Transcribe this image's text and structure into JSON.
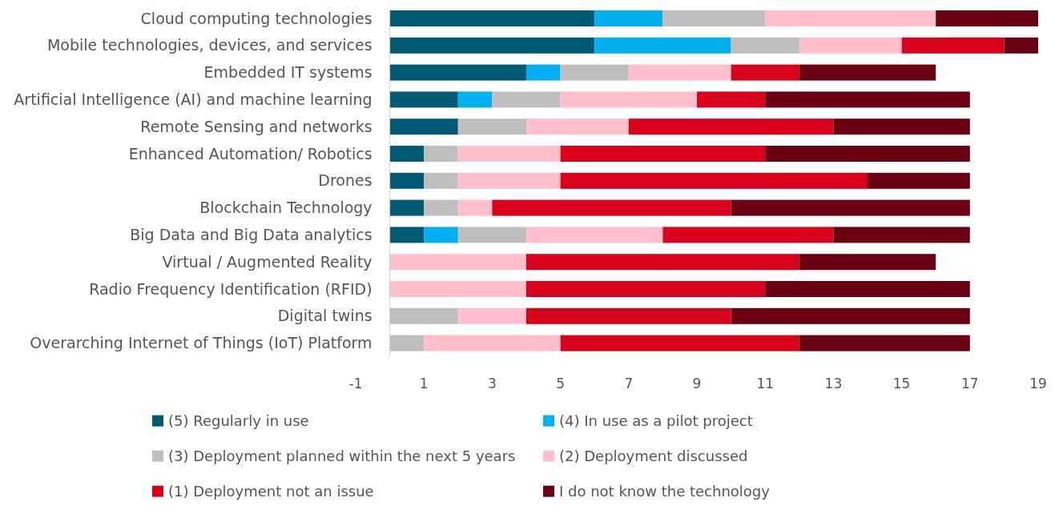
{
  "chart_data": {
    "type": "bar",
    "orientation": "horizontal",
    "stacked": true,
    "categories": [
      "Cloud computing technologies",
      "Mobile technologies, devices, and services",
      "Embedded IT systems",
      "Artificial Intelligence (AI) and machine learning",
      "Remote Sensing and networks",
      "Enhanced Automation/ Robotics",
      "Drones",
      "Blockchain Technology",
      "Big Data and Big Data analytics",
      "Virtual / Augmented Reality",
      "Radio Frequency Identification (RFID)",
      "Digital twins",
      "Overarching Internet of Things (IoT) Platform"
    ],
    "series": [
      {
        "name": "(5) Regularly in use",
        "color": "#005a73",
        "values": [
          6,
          6,
          4,
          2,
          2,
          1,
          1,
          1,
          1,
          0,
          0,
          0,
          0
        ]
      },
      {
        "name": "(4) In use as a pilot project",
        "color": "#00b0f0",
        "values": [
          2,
          4,
          1,
          1,
          0,
          0,
          0,
          0,
          1,
          0,
          0,
          0,
          0
        ]
      },
      {
        "name": "(3) Deployment planned within the next 5 years",
        "color": "#bfbfbf",
        "values": [
          3,
          2,
          2,
          2,
          2,
          1,
          1,
          1,
          2,
          0,
          0,
          2,
          1
        ]
      },
      {
        "name": "(2) Deployment discussed",
        "color": "#ffc0cb",
        "values": [
          5,
          3,
          3,
          4,
          3,
          3,
          3,
          1,
          4,
          4,
          4,
          2,
          4
        ]
      },
      {
        "name": "(1) Deployment not an issue",
        "color": "#d9001b",
        "values": [
          0,
          3,
          2,
          2,
          6,
          6,
          9,
          7,
          5,
          8,
          7,
          6,
          7
        ]
      },
      {
        "name": "I do not know the technology",
        "color": "#6b0012",
        "values": [
          3,
          1,
          4,
          6,
          4,
          6,
          3,
          7,
          4,
          4,
          6,
          7,
          5
        ]
      }
    ],
    "xlim": [
      -1,
      19
    ],
    "xticks": [
      -1,
      1,
      3,
      5,
      7,
      9,
      11,
      13,
      15,
      17,
      19
    ],
    "grid": false,
    "legend": "bottom"
  }
}
